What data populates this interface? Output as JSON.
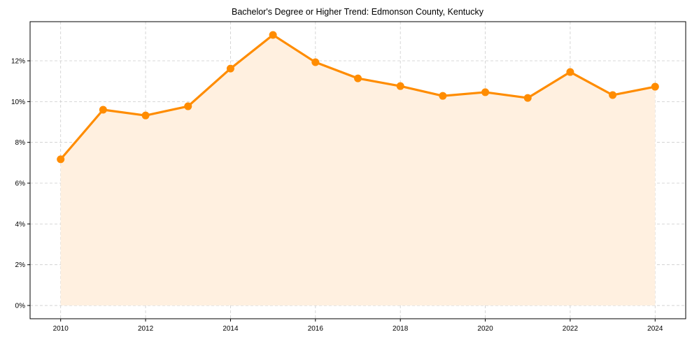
{
  "chart_data": {
    "type": "line",
    "title": "Bachelor's Degree or Higher Trend: Edmonson County, Kentucky",
    "xlabel": "",
    "ylabel": "",
    "x": [
      2010,
      2011,
      2012,
      2013,
      2014,
      2015,
      2016,
      2017,
      2018,
      2019,
      2020,
      2021,
      2022,
      2023,
      2024
    ],
    "series": [
      {
        "name": "Bachelor's Degree or Higher",
        "values": [
          7.17,
          9.6,
          9.32,
          9.77,
          11.62,
          13.27,
          11.93,
          11.14,
          10.76,
          10.28,
          10.46,
          10.18,
          11.45,
          10.32,
          10.73
        ]
      }
    ],
    "xlim": [
      2009.28,
      2024.72
    ],
    "ylim": [
      -0.65,
      13.92
    ],
    "xticks": [
      2010,
      2012,
      2014,
      2016,
      2018,
      2020,
      2022,
      2024
    ],
    "xtick_labels": [
      "2010",
      "2012",
      "2014",
      "2016",
      "2018",
      "2020",
      "2022",
      "2024"
    ],
    "yticks": [
      0,
      2,
      4,
      6,
      8,
      10,
      12
    ],
    "ytick_labels": [
      "0%",
      "2%",
      "4%",
      "6%",
      "8%",
      "10%",
      "12%"
    ],
    "grid": true,
    "colors": {
      "line": "#ff8c00",
      "fill": "#fff0e0",
      "grid": "#cccccc"
    }
  }
}
